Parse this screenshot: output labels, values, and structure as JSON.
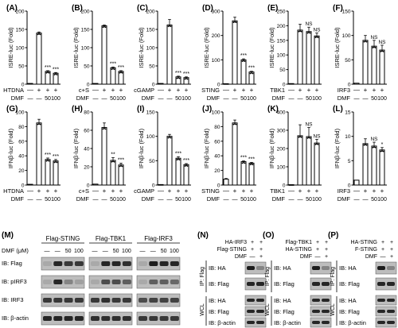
{
  "chart_data": [
    {
      "type": "bar",
      "panel": "(A)",
      "ylabel": "ISRE-luc (Fold)",
      "ylim": [
        0,
        200
      ],
      "yticks": [
        0,
        50,
        100,
        150,
        200
      ],
      "stimulus": "HTDNA",
      "stim": [
        "—",
        "+",
        "+",
        "+"
      ],
      "dmf": [
        "—",
        "—",
        "50",
        "100"
      ],
      "values": [
        2,
        140,
        35,
        30
      ],
      "errors": [
        0,
        3,
        2,
        2
      ],
      "sig": [
        "",
        "",
        "***",
        "***"
      ]
    },
    {
      "type": "bar",
      "panel": "(B)",
      "ylabel": "ISRE-luc (Fold)",
      "ylim": [
        0,
        200
      ],
      "yticks": [
        0,
        50,
        100,
        150,
        200
      ],
      "stimulus": "c+S",
      "stim": [
        "—",
        "+",
        "+",
        "+"
      ],
      "dmf": [
        "—",
        "—",
        "50",
        "100"
      ],
      "values": [
        2,
        160,
        45,
        35
      ],
      "errors": [
        0,
        2,
        2,
        2
      ],
      "sig": [
        "",
        "",
        "***",
        "***"
      ]
    },
    {
      "type": "bar",
      "panel": "(C)",
      "ylabel": "ISRE-luc (Fold)",
      "ylim": [
        0,
        200
      ],
      "yticks": [
        0,
        50,
        100,
        150,
        200
      ],
      "stimulus": "cGAMP",
      "stim": [
        "—",
        "+",
        "+",
        "+"
      ],
      "dmf": [
        "—",
        "—",
        "50",
        "100"
      ],
      "values": [
        2,
        162,
        20,
        18
      ],
      "errors": [
        0,
        15,
        2,
        2
      ],
      "sig": [
        "",
        "",
        "***",
        "***"
      ]
    },
    {
      "type": "bar",
      "panel": "(D)",
      "ylabel": "ISRE-luc (Fold)",
      "ylim": [
        0,
        300
      ],
      "yticks": [
        0,
        100,
        200,
        300
      ],
      "stimulus": "STING",
      "stim": [
        "—",
        "+",
        "+",
        "+"
      ],
      "dmf": [
        "—",
        "—",
        "50",
        "100"
      ],
      "values": [
        2,
        260,
        100,
        50
      ],
      "errors": [
        0,
        15,
        4,
        3
      ],
      "sig": [
        "",
        "",
        "***",
        "***"
      ]
    },
    {
      "type": "bar",
      "panel": "(E)",
      "ylabel": "ISRE-luc (Fold)",
      "ylim": [
        0,
        250
      ],
      "yticks": [
        0,
        50,
        100,
        150,
        200,
        250
      ],
      "stimulus": "TBK1",
      "stim": [
        "—",
        "+",
        "+",
        "+"
      ],
      "dmf": [
        "—",
        "—",
        "50",
        "100"
      ],
      "values": [
        2,
        185,
        180,
        165
      ],
      "errors": [
        0,
        20,
        15,
        10
      ],
      "sig": [
        "",
        "",
        "NS",
        "NS"
      ]
    },
    {
      "type": "bar",
      "panel": "(F)",
      "ylabel": "ISRE-luc (Fold)",
      "ylim": [
        0,
        150
      ],
      "yticks": [
        0,
        50,
        100,
        150
      ],
      "stimulus": "IRF3",
      "stim": [
        "—",
        "+",
        "+",
        "+"
      ],
      "dmf": [
        "—",
        "—",
        "50",
        "100"
      ],
      "values": [
        2,
        90,
        78,
        70
      ],
      "errors": [
        0,
        10,
        12,
        10
      ],
      "sig": [
        "",
        "",
        "NS",
        "NS"
      ]
    },
    {
      "type": "bar",
      "panel": "(G)",
      "ylabel": "IFNβ-luc (Fold)",
      "ylim": [
        0,
        100
      ],
      "yticks": [
        0,
        20,
        40,
        60,
        80,
        100
      ],
      "stimulus": "HTDNA",
      "stim": [
        "—",
        "+",
        "+",
        "+"
      ],
      "dmf": [
        "—",
        "—",
        "50",
        "100"
      ],
      "values": [
        1,
        85,
        35,
        33
      ],
      "errors": [
        0,
        5,
        2,
        2
      ],
      "sig": [
        "",
        "",
        "***",
        "***"
      ]
    },
    {
      "type": "bar",
      "panel": "(H)",
      "ylabel": "IFNβ-luc (Fold)",
      "ylim": [
        0,
        80
      ],
      "yticks": [
        0,
        20,
        40,
        60,
        80
      ],
      "stimulus": "c+S",
      "stim": [
        "—",
        "+",
        "+",
        "+"
      ],
      "dmf": [
        "—",
        "—",
        "50",
        "100"
      ],
      "values": [
        1,
        63,
        27,
        22
      ],
      "errors": [
        0,
        5,
        3,
        2
      ],
      "sig": [
        "",
        "",
        "**",
        "***"
      ]
    },
    {
      "type": "bar",
      "panel": "(I)",
      "ylabel": "IFNβ-luc (Fold)",
      "ylim": [
        0,
        150
      ],
      "yticks": [
        0,
        50,
        100,
        150
      ],
      "stimulus": "cGAMP",
      "stim": [
        "—",
        "+",
        "+",
        "+"
      ],
      "dmf": [
        "—",
        "—",
        "50",
        "100"
      ],
      "values": [
        1,
        100,
        55,
        42
      ],
      "errors": [
        0,
        4,
        3,
        2
      ],
      "sig": [
        "",
        "",
        "***",
        "***"
      ]
    },
    {
      "type": "bar",
      "panel": "(J)",
      "ylabel": "IFNβ-luc (Fold)",
      "ylim": [
        0,
        100
      ],
      "yticks": [
        0,
        20,
        40,
        60,
        80,
        100
      ],
      "stimulus": "STING",
      "stim": [
        "—",
        "+",
        "+",
        "+"
      ],
      "dmf": [
        "—",
        "—",
        "50",
        "100"
      ],
      "values": [
        8,
        85,
        32,
        30
      ],
      "errors": [
        1,
        4,
        1,
        1
      ],
      "sig": [
        "",
        "",
        "***",
        "***"
      ]
    },
    {
      "type": "bar",
      "panel": "(K)",
      "ylabel": "IFNβ-luc (Fold)",
      "ylim": [
        0,
        400
      ],
      "yticks": [
        0,
        100,
        200,
        300,
        400
      ],
      "stimulus": "TBK1",
      "stim": [
        "—",
        "+",
        "+",
        "+"
      ],
      "dmf": [
        "—",
        "—",
        "50",
        "100"
      ],
      "values": [
        2,
        270,
        265,
        230
      ],
      "errors": [
        0,
        60,
        50,
        20
      ],
      "sig": [
        "",
        "",
        "NS",
        "NS"
      ]
    },
    {
      "type": "bar",
      "panel": "(L)",
      "ylabel": "IFNβ-luc (Fold)",
      "ylim": [
        0,
        15
      ],
      "yticks": [
        0,
        5,
        10,
        15
      ],
      "stimulus": "IRF3",
      "stim": [
        "—",
        "+",
        "+",
        "+"
      ],
      "dmf": [
        "—",
        "—",
        "50",
        "100"
      ],
      "values": [
        1,
        8.5,
        8,
        7.2
      ],
      "errors": [
        0,
        1,
        0.8,
        0.5
      ],
      "sig": [
        "",
        "",
        "NS",
        "*"
      ]
    }
  ],
  "blots": [
    {
      "panel": "(M)",
      "head_rows": [
        {
          "labels": [
            "Flag-STING",
            "Flag-TBK1",
            "Flag-IRF3"
          ],
          "groups": true
        },
        {
          "prefix": "DMF (μM)",
          "cells": [
            "—",
            "—",
            "50",
            "100",
            "—",
            "—",
            "50",
            "100",
            "—",
            "—",
            "50",
            "100"
          ]
        }
      ],
      "rows": [
        "IB: Flag",
        "IB: pIRF3",
        "IB: IRF3",
        "IB: β-actin"
      ]
    },
    {
      "panel": "(N)",
      "head": [
        [
          "HA-IRF3",
          "+",
          "+"
        ],
        [
          "Flag-STING",
          "+",
          "+"
        ],
        [
          "DMF",
          "—",
          "+"
        ]
      ],
      "ip": "IP: Flag",
      "ip_rows": [
        "IB: HA",
        "IB: Flag"
      ],
      "wcl": "WCL",
      "wcl_rows": [
        "IB: HA",
        "IB: Flag",
        "IB: β-actin"
      ]
    },
    {
      "panel": "(O)",
      "head": [
        [
          "Flag-TBK1",
          "+",
          "+"
        ],
        [
          "HA-STING",
          "+",
          "+"
        ],
        [
          "DMF",
          "—",
          "+"
        ]
      ],
      "ip": "IP: Flag",
      "ip_rows": [
        "IB: HA",
        "IB: Flag"
      ],
      "wcl": "WCL",
      "wcl_rows": [
        "IB: HA",
        "IB: Flag",
        "IB: β-actin"
      ]
    },
    {
      "panel": "(P)",
      "head": [
        [
          "HA-STING",
          "+",
          "+"
        ],
        [
          "F-STING",
          "+",
          "+"
        ],
        [
          "DMF",
          "—",
          "+"
        ]
      ],
      "ip": "IP: Flag",
      "ip_rows": [
        "IB: HA",
        "IB: Flag"
      ],
      "wcl": "WCL",
      "wcl_rows": [
        "IB: HA",
        "IB: Flag",
        "IB: β-actin"
      ]
    }
  ],
  "row_labels": {
    "dmf": "DMF"
  }
}
